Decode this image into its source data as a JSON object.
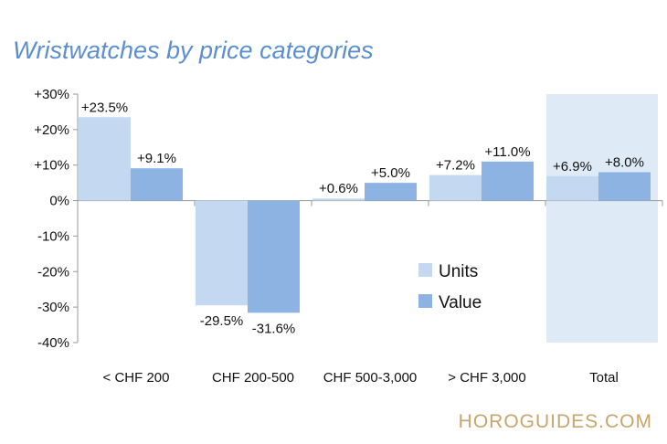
{
  "chart_data": {
    "type": "bar",
    "title": "Wristwatches by price categories",
    "categories": [
      "< CHF 200",
      "CHF 200-500",
      "CHF 500-3,000",
      "> CHF 3,000",
      "Total"
    ],
    "series": [
      {
        "name": "Units",
        "values": [
          23.5,
          -29.5,
          0.6,
          7.2,
          6.9
        ],
        "labels": [
          "+23.5%",
          "-29.5%",
          "+0.6%",
          "+7.2%",
          "+6.9%"
        ],
        "color": "#c5d8f1"
      },
      {
        "name": "Value",
        "values": [
          9.1,
          -31.6,
          5.0,
          11.0,
          8.0
        ],
        "labels": [
          "+9.1%",
          "-31.6%",
          "+5.0%",
          "+11.0%",
          "+8.0%"
        ],
        "color": "#8db3e2"
      }
    ],
    "ylim": [
      -40,
      30
    ],
    "y_ticks": [
      30,
      20,
      10,
      0,
      -10,
      -20,
      -30,
      -40
    ],
    "y_tick_labels": [
      "+30%",
      "+20%",
      "+10%",
      "0%",
      "-10%",
      "-20%",
      "-30%",
      "-40%"
    ],
    "highlight_category": "Total",
    "highlight_color": "#deebf7",
    "legend_position": "center-right",
    "grid": false
  },
  "watermark": "HOROGUIDES.COM"
}
